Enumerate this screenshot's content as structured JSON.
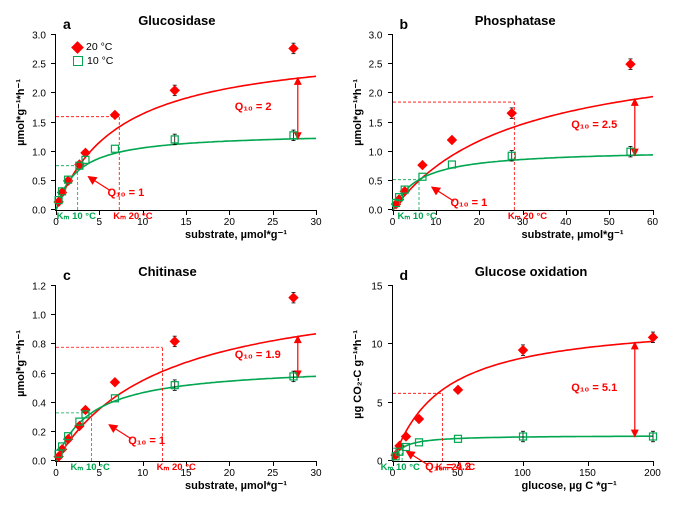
{
  "panels": [
    {
      "letter": "a",
      "title": "Glucosidase",
      "x_label": "substrate, µmol*g⁻¹",
      "y_label": "µmol*g⁻¹*h⁻¹",
      "xlim": [
        0,
        30
      ],
      "ylim": [
        0,
        3.0
      ],
      "xtick": 5,
      "ytick": 0.5,
      "series20": {
        "vmax": 2.85,
        "km": 7.3,
        "pts": [
          [
            0.3,
            0.14
          ],
          [
            0.7,
            0.3
          ],
          [
            1.4,
            0.5
          ],
          [
            2.7,
            0.78
          ],
          [
            3.4,
            0.98
          ],
          [
            6.8,
            1.63
          ],
          [
            13.7,
            2.05
          ],
          [
            27.4,
            2.77
          ]
        ]
      },
      "series10": {
        "vmax": 1.33,
        "km": 2.5,
        "pts": [
          [
            0.3,
            0.17
          ],
          [
            0.7,
            0.32
          ],
          [
            1.4,
            0.52
          ],
          [
            2.7,
            0.76
          ],
          [
            3.4,
            0.86
          ],
          [
            6.8,
            1.05
          ],
          [
            13.7,
            1.21
          ],
          [
            27.4,
            1.28
          ]
        ]
      },
      "q10_high": "Q₁₀ = 2",
      "q10_low": "Q₁₀ = 1",
      "km_red": "Kₘ 20 °C",
      "km_green": "Kₘ 10 °C",
      "km_red_x": 7.3,
      "km_green_x": 2.5,
      "km_red_y": 1.6,
      "km_green_y": 0.76,
      "show_legend": true
    },
    {
      "letter": "b",
      "title": "Phosphatase",
      "x_label": "substrate, µmol*g⁻¹",
      "y_label": "µmol*g⁻¹*h⁻¹",
      "xlim": [
        0,
        60
      ],
      "ylim": [
        0,
        3.0
      ],
      "xtick": 10,
      "ytick": 0.5,
      "series20": {
        "vmax": 2.85,
        "km": 28,
        "pts": [
          [
            0.7,
            0.1
          ],
          [
            1.4,
            0.18
          ],
          [
            2.7,
            0.32
          ],
          [
            6.8,
            0.77
          ],
          [
            13.6,
            1.2
          ],
          [
            27.4,
            1.66
          ],
          [
            54.8,
            2.5
          ]
        ]
      },
      "series10": {
        "vmax": 1.04,
        "km": 6,
        "pts": [
          [
            0.7,
            0.12
          ],
          [
            1.4,
            0.22
          ],
          [
            2.7,
            0.35
          ],
          [
            6.8,
            0.57
          ],
          [
            13.6,
            0.78
          ],
          [
            27.4,
            0.93
          ],
          [
            54.8,
            1.0
          ]
        ]
      },
      "q10_high": "Q₁₀ = 2.5",
      "q10_low": "Q₁₀ = 1",
      "km_red": "Kₘ 20 °C",
      "km_green": "Kₘ 10 °C",
      "km_red_x": 28,
      "km_green_x": 6,
      "km_red_y": 1.85,
      "km_green_y": 0.52,
      "show_legend": false
    },
    {
      "letter": "c",
      "title": "Chitinase",
      "x_label": "substrate, µmol*g⁻¹",
      "y_label": "µmol*g⁻¹*h⁻¹",
      "xlim": [
        0,
        30
      ],
      "ylim": [
        0,
        1.2
      ],
      "xtick": 5,
      "ytick": 0.2,
      "series20": {
        "vmax": 1.23,
        "km": 12.3,
        "pts": [
          [
            0.3,
            0.03
          ],
          [
            0.7,
            0.08
          ],
          [
            1.4,
            0.15
          ],
          [
            2.7,
            0.24
          ],
          [
            3.4,
            0.35
          ],
          [
            6.8,
            0.54
          ],
          [
            13.7,
            0.82
          ],
          [
            27.4,
            1.12
          ]
        ]
      },
      "series10": {
        "vmax": 0.66,
        "km": 4.1,
        "pts": [
          [
            0.3,
            0.05
          ],
          [
            0.7,
            0.1
          ],
          [
            1.4,
            0.17
          ],
          [
            2.7,
            0.27
          ],
          [
            3.4,
            0.32
          ],
          [
            6.8,
            0.43
          ],
          [
            13.7,
            0.52
          ],
          [
            27.4,
            0.58
          ]
        ]
      },
      "q10_high": "Q₁₀ = 1.9",
      "q10_low": "Q₁₀ = 1",
      "km_red": "Kₘ 20 °C",
      "km_green": "Kₘ 10 °C",
      "km_red_x": 12.3,
      "km_green_x": 4.1,
      "km_red_y": 0.78,
      "km_green_y": 0.33,
      "show_legend": false
    },
    {
      "letter": "d",
      "title": "Glucose oxidation",
      "x_label": "glucose, µg C *g⁻¹",
      "y_label": "µg CO₂-C g⁻¹*h⁻¹",
      "xlim": [
        0,
        200
      ],
      "ylim": [
        0,
        15
      ],
      "xtick": 50,
      "ytick": 5,
      "series20": {
        "vmax": 12.2,
        "km": 38,
        "pts": [
          [
            2,
            0.5
          ],
          [
            5,
            1.3
          ],
          [
            10,
            2.1
          ],
          [
            20,
            3.6
          ],
          [
            50,
            6.1
          ],
          [
            100,
            9.5
          ],
          [
            200,
            10.6
          ]
        ]
      },
      "series10": {
        "vmax": 2.2,
        "km": 7,
        "pts": [
          [
            2,
            0.4
          ],
          [
            5,
            0.8
          ],
          [
            10,
            1.2
          ],
          [
            20,
            1.6
          ],
          [
            50,
            1.9
          ],
          [
            100,
            2.1
          ],
          [
            200,
            2.1
          ]
        ]
      },
      "q10_high": "Q₁₀ = 5.1",
      "q10_low": "Q₁₀ = 4.2",
      "km_red": "Kₘ 20 °C",
      "km_green": "Kₘ 10 °C",
      "km_red_x": 38,
      "km_green_x": 7,
      "km_red_y": 5.8,
      "km_green_y": 1.1,
      "show_legend": false
    }
  ],
  "legend": {
    "t20": "20 °C",
    "t10": "10 °C"
  },
  "colors": {
    "red": "#ff0000",
    "green": "#00a650",
    "black": "#000000"
  }
}
